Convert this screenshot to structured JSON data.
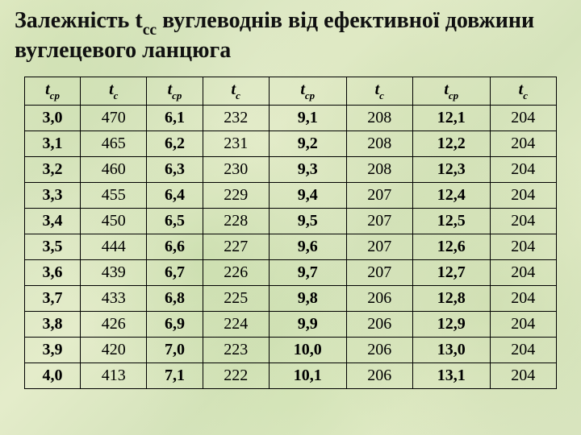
{
  "title": {
    "pre": "Залежність t",
    "sub": "cc",
    "post": " вуглеводнів від ефективної довжини вуглецевого ланцюга",
    "fontsize": 28,
    "color": "#111111"
  },
  "table": {
    "type": "table",
    "border_color": "#000000",
    "cell_fontsize": 20,
    "background_color": "transparent",
    "header_label_main": "t",
    "header_label_sub_cp": "cp",
    "header_label_sub_c": "c",
    "col_pattern": [
      "bold",
      "plain",
      "bold",
      "plain",
      "bold",
      "plain",
      "bold",
      "plain"
    ],
    "columns": [
      {
        "key": "t_cp_1",
        "main": "t",
        "sub": "cp",
        "bold": true,
        "italic": true
      },
      {
        "key": "t_c_1",
        "main": "t",
        "sub": "c",
        "bold": true,
        "italic": true
      },
      {
        "key": "t_cp_2",
        "main": "t",
        "sub": "cp",
        "bold": true,
        "italic": true
      },
      {
        "key": "t_c_2",
        "main": "t",
        "sub": "c",
        "bold": true,
        "italic": true
      },
      {
        "key": "t_cp_3",
        "main": "t",
        "sub": "cp",
        "bold": true,
        "italic": true
      },
      {
        "key": "t_c_3",
        "main": "t",
        "sub": "c",
        "bold": true,
        "italic": true
      },
      {
        "key": "t_cp_4",
        "main": "t",
        "sub": "cp",
        "bold": true,
        "italic": true
      },
      {
        "key": "t_c_4",
        "main": "t",
        "sub": "c",
        "bold": true,
        "italic": true
      }
    ],
    "rows": [
      [
        "3,0",
        "470",
        "6,1",
        "232",
        "9,1",
        "208",
        "12,1",
        "204"
      ],
      [
        "3,1",
        "465",
        "6,2",
        "231",
        "9,2",
        "208",
        "12,2",
        "204"
      ],
      [
        "3,2",
        "460",
        "6,3",
        "230",
        "9,3",
        "208",
        "12,3",
        "204"
      ],
      [
        "3,3",
        "455",
        "6,4",
        "229",
        "9,4",
        "207",
        "12,4",
        "204"
      ],
      [
        "3,4",
        "450",
        "6,5",
        "228",
        "9,5",
        "207",
        "12,5",
        "204"
      ],
      [
        "3,5",
        "444",
        "6,6",
        "227",
        "9,6",
        "207",
        "12,6",
        "204"
      ],
      [
        "3,6",
        "439",
        "6,7",
        "226",
        "9,7",
        "207",
        "12,7",
        "204"
      ],
      [
        "3,7",
        "433",
        "6,8",
        "225",
        "9,8",
        "206",
        "12,8",
        "204"
      ],
      [
        "3,8",
        "426",
        "6,9",
        "224",
        "9,9",
        "206",
        "12,9",
        "204"
      ],
      [
        "3,9",
        "420",
        "7,0",
        "223",
        "10,0",
        "206",
        "13,0",
        "204"
      ],
      [
        "4,0",
        "413",
        "7,1",
        "222",
        "10,1",
        "206",
        "13,1",
        "204"
      ]
    ]
  }
}
